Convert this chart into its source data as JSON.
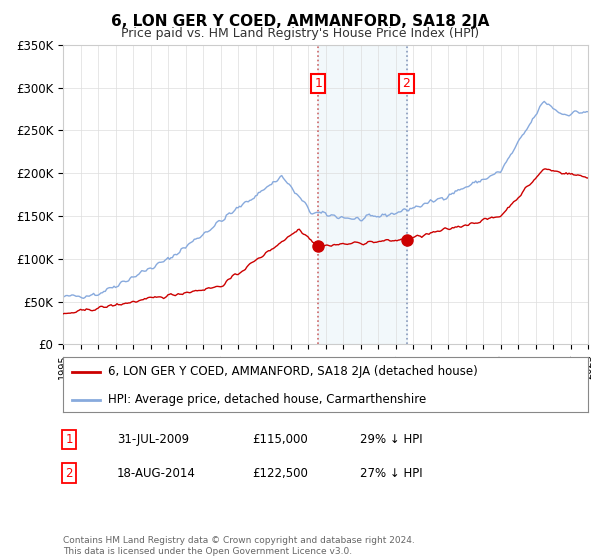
{
  "title": "6, LON GER Y COED, AMMANFORD, SA18 2JA",
  "subtitle": "Price paid vs. HM Land Registry's House Price Index (HPI)",
  "ylim": [
    0,
    350000
  ],
  "yticks": [
    0,
    50000,
    100000,
    150000,
    200000,
    250000,
    300000,
    350000
  ],
  "ytick_labels": [
    "£0",
    "£50K",
    "£100K",
    "£150K",
    "£200K",
    "£250K",
    "£300K",
    "£350K"
  ],
  "sale1": {
    "date": "31-JUL-2009",
    "price": 115000,
    "pct": "29%",
    "dir": "↓",
    "label": "1"
  },
  "sale2": {
    "date": "18-AUG-2014",
    "price": 122500,
    "pct": "27%",
    "dir": "↓",
    "label": "2"
  },
  "sale1_x": 2009.58,
  "sale2_x": 2014.63,
  "legend_property": "6, LON GER Y COED, AMMANFORD, SA18 2JA (detached house)",
  "legend_hpi": "HPI: Average price, detached house, Carmarthenshire",
  "property_color": "#cc0000",
  "hpi_color": "#88aadd",
  "footnote": "Contains HM Land Registry data © Crown copyright and database right 2024.\nThis data is licensed under the Open Government Licence v3.0.",
  "xmin": 1995,
  "xmax": 2025
}
